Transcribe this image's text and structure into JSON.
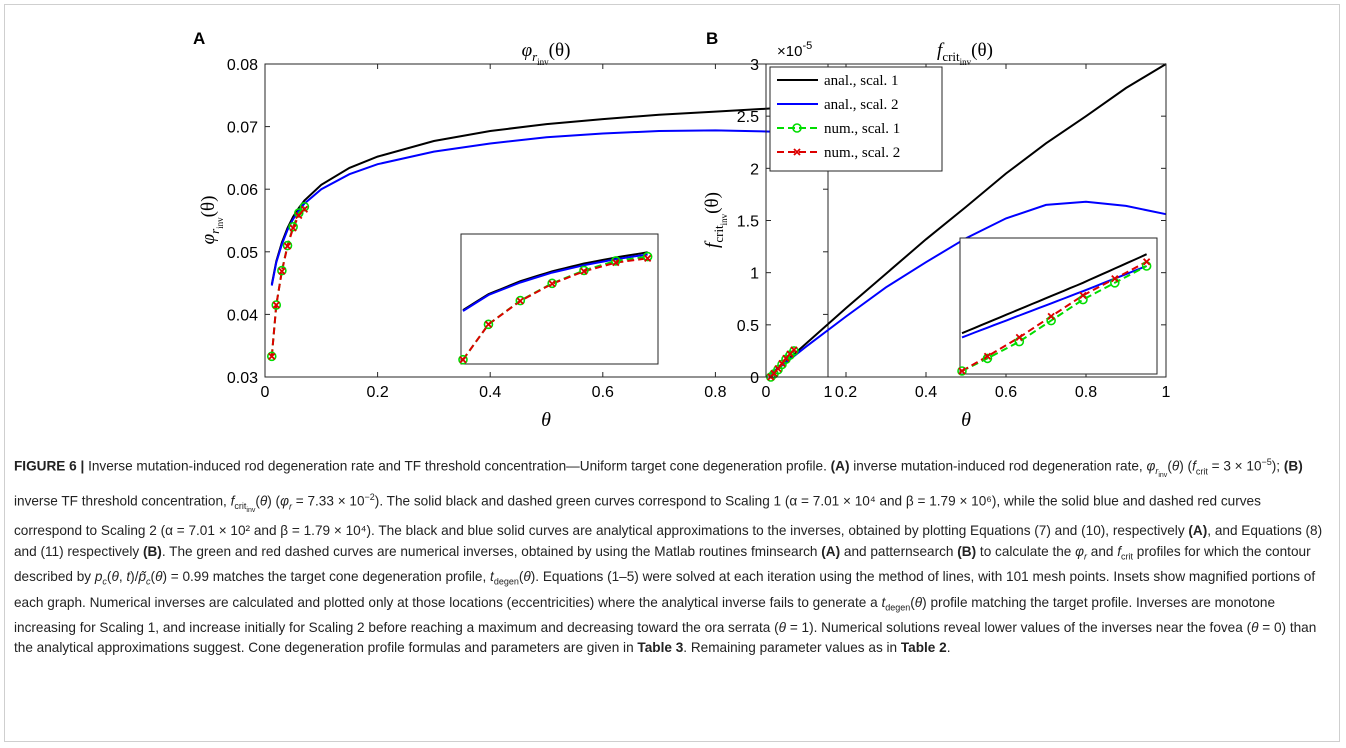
{
  "panels": [
    {
      "letter": "A",
      "title_main": "φ",
      "title_sub": "r",
      "title_subsub": "inv",
      "title_arg": "(θ)",
      "ylabel_main": "φ",
      "ylabel_sub": "r",
      "ylabel_subsub": "inv",
      "ylabel_arg": "(θ)",
      "xlabel": "θ",
      "xticks": [
        "0",
        "0.2",
        "0.4",
        "0.6",
        "0.8",
        "1"
      ],
      "yticks": [
        "0.03",
        "0.04",
        "0.05",
        "0.06",
        "0.07",
        "0.08"
      ]
    },
    {
      "letter": "B",
      "title_main": "f",
      "title_sub": "crit",
      "title_subsub": "inv",
      "title_arg": "(θ)",
      "ylabel_main": "f",
      "ylabel_sub": "crit",
      "ylabel_subsub": "inv",
      "ylabel_arg": "(θ)",
      "xlabel": "θ",
      "xticks": [
        "0",
        "0.2",
        "0.4",
        "0.6",
        "0.8",
        "1"
      ],
      "yticks": [
        "0",
        "0.5",
        "1",
        "1.5",
        "2",
        "2.5",
        "3"
      ],
      "exponent_base": "×10",
      "exponent_power": "-5",
      "legend": [
        "anal., scal. 1",
        "anal., scal. 2",
        "num., scal. 1",
        "num., scal. 2"
      ]
    }
  ],
  "chart_data": [
    {
      "type": "line",
      "panel": "A",
      "x_range": [
        0,
        1
      ],
      "ylim": [
        0.03,
        0.08
      ],
      "grid": false,
      "series": [
        {
          "name": "anal., scal. 1",
          "style": "solid",
          "color": "#000000",
          "x": [
            0.012,
            0.02,
            0.03,
            0.04,
            0.05,
            0.06,
            0.07,
            0.1,
            0.15,
            0.2,
            0.3,
            0.4,
            0.5,
            0.6,
            0.7,
            0.8,
            0.9,
            1.0
          ],
          "y": [
            0.0448,
            0.0485,
            0.0515,
            0.0538,
            0.0556,
            0.057,
            0.0582,
            0.0607,
            0.0634,
            0.0652,
            0.0677,
            0.0693,
            0.0704,
            0.0712,
            0.0719,
            0.0724,
            0.0729,
            0.0733
          ]
        },
        {
          "name": "anal., scal. 2",
          "style": "solid",
          "color": "#0000ff",
          "x": [
            0.012,
            0.02,
            0.03,
            0.04,
            0.05,
            0.06,
            0.07,
            0.1,
            0.15,
            0.2,
            0.3,
            0.4,
            0.5,
            0.6,
            0.7,
            0.8,
            0.9,
            1.0
          ],
          "y": [
            0.0446,
            0.0483,
            0.0512,
            0.0535,
            0.0552,
            0.0566,
            0.0577,
            0.06,
            0.0624,
            0.064,
            0.066,
            0.0673,
            0.0683,
            0.0689,
            0.0693,
            0.0694,
            0.0692,
            0.0689
          ]
        },
        {
          "name": "num., scal. 1",
          "style": "dashed",
          "marker": "circle",
          "color": "#00dd00",
          "x": [
            0.012,
            0.02,
            0.03,
            0.04,
            0.05,
            0.06,
            0.07
          ],
          "y": [
            0.0333,
            0.0415,
            0.047,
            0.051,
            0.054,
            0.0562,
            0.0572
          ]
        },
        {
          "name": "num., scal. 2",
          "style": "dashed",
          "marker": "x",
          "color": "#dd0000",
          "x": [
            0.012,
            0.02,
            0.03,
            0.04,
            0.05,
            0.06,
            0.07
          ],
          "y": [
            0.0333,
            0.0415,
            0.0469,
            0.0509,
            0.0538,
            0.0558,
            0.0568
          ]
        }
      ]
    },
    {
      "type": "line",
      "panel": "B",
      "x_range": [
        0,
        1
      ],
      "ylim": [
        0,
        3
      ],
      "y_scale_note": "×10^-5",
      "grid": false,
      "legend_position": "top-left",
      "series": [
        {
          "name": "anal., scal. 1",
          "style": "solid",
          "color": "#000000",
          "x": [
            0.012,
            0.05,
            0.1,
            0.2,
            0.3,
            0.4,
            0.5,
            0.6,
            0.7,
            0.8,
            0.9,
            1.0
          ],
          "y": [
            0.03,
            0.15,
            0.32,
            0.66,
            0.99,
            1.32,
            1.63,
            1.95,
            2.24,
            2.5,
            2.77,
            3.0
          ]
        },
        {
          "name": "anal., scal. 2",
          "style": "solid",
          "color": "#0000ff",
          "x": [
            0.012,
            0.05,
            0.1,
            0.2,
            0.3,
            0.4,
            0.5,
            0.6,
            0.7,
            0.8,
            0.9,
            1.0
          ],
          "y": [
            0.03,
            0.14,
            0.29,
            0.58,
            0.86,
            1.1,
            1.33,
            1.52,
            1.65,
            1.68,
            1.64,
            1.56
          ]
        },
        {
          "name": "num., scal. 1",
          "style": "dashed",
          "marker": "circle",
          "color": "#00dd00",
          "x": [
            0.012,
            0.02,
            0.03,
            0.04,
            0.05,
            0.06,
            0.07
          ],
          "y": [
            0.0,
            0.03,
            0.07,
            0.12,
            0.17,
            0.21,
            0.25
          ]
        },
        {
          "name": "num., scal. 2",
          "style": "dashed",
          "marker": "x",
          "color": "#dd0000",
          "x": [
            0.012,
            0.02,
            0.03,
            0.04,
            0.05,
            0.06,
            0.07
          ],
          "y": [
            0.0,
            0.035,
            0.08,
            0.13,
            0.18,
            0.22,
            0.26
          ]
        }
      ]
    }
  ],
  "caption": {
    "lead": "FIGURE 6 | ",
    "s1": "Inverse mutation-induced rod degeneration rate and TF threshold concentration—Uniform target cone degeneration profile. ",
    "A": "(A)",
    "s2": " inverse mutation-induced rod degeneration rate, ",
    "B": "(B)",
    "s3": " inverse TF threshold concentration, ",
    "rest": "The solid black and dashed green curves correspond to Scaling 1 (α = 7.01 × 10⁴ and β = 1.79 × 10⁶), while the solid blue and dashed red curves correspond to Scaling 2 (α = 7.01 × 10² and β = 1.79 × 10⁴). The black and blue solid curves are analytical approximations to the inverses, obtained by plotting Equations (7) and (10), respectively",
    "t3": "Table 3",
    "t2": "Table 2"
  }
}
